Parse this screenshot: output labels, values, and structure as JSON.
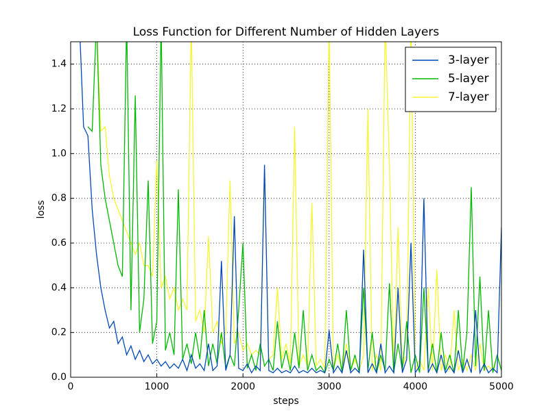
{
  "chart_data": {
    "type": "line",
    "title": "Loss Function for Different Number of Hidden Layers",
    "x_label": "steps",
    "y_label": "loss",
    "x": [
      100,
      150,
      200,
      250,
      300,
      350,
      400,
      450,
      500,
      550,
      600,
      650,
      700,
      750,
      800,
      850,
      900,
      950,
      1000,
      1050,
      1100,
      1150,
      1200,
      1250,
      1300,
      1350,
      1400,
      1450,
      1500,
      1550,
      1600,
      1650,
      1700,
      1750,
      1800,
      1850,
      1900,
      1950,
      2000,
      2050,
      2100,
      2150,
      2200,
      2250,
      2300,
      2350,
      2400,
      2450,
      2500,
      2550,
      2600,
      2650,
      2700,
      2750,
      2800,
      2850,
      2900,
      2950,
      3000,
      3050,
      3100,
      3150,
      3200,
      3250,
      3300,
      3350,
      3400,
      3450,
      3500,
      3550,
      3600,
      3650,
      3700,
      3750,
      3800,
      3850,
      3900,
      3950,
      4000,
      4050,
      4100,
      4150,
      4200,
      4250,
      4300,
      4350,
      4400,
      4450,
      4500,
      4550,
      4600,
      4650,
      4700,
      4750,
      4800,
      4850,
      4900,
      4950,
      5000
    ],
    "series": [
      {
        "name": "3-layer",
        "color": "#0047b8",
        "values": [
          1.6,
          1.12,
          1.08,
          0.75,
          0.55,
          0.4,
          0.3,
          0.22,
          0.25,
          0.15,
          0.18,
          0.1,
          0.14,
          0.08,
          0.12,
          0.07,
          0.1,
          0.06,
          0.08,
          0.05,
          0.07,
          0.04,
          0.06,
          0.04,
          0.08,
          0.03,
          0.1,
          0.04,
          0.06,
          0.03,
          0.15,
          0.03,
          0.05,
          0.52,
          0.03,
          0.1,
          0.72,
          0.04,
          0.03,
          0.06,
          0.02,
          0.05,
          0.03,
          0.95,
          0.03,
          0.02,
          0.04,
          0.02,
          0.03,
          0.02,
          0.05,
          0.02,
          0.03,
          0.02,
          0.04,
          0.02,
          0.03,
          0.02,
          0.21,
          0.02,
          0.05,
          0.02,
          0.12,
          0.02,
          0.04,
          0.02,
          0.57,
          0.02,
          0.06,
          0.02,
          0.15,
          0.02,
          0.05,
          0.02,
          0.4,
          0.02,
          0.08,
          0.6,
          0.02,
          0.05,
          0.8,
          0.02,
          0.06,
          0.02,
          0.1,
          0.02,
          0.05,
          0.02,
          0.12,
          0.02,
          0.08,
          0.02,
          0.3,
          0.02,
          0.06,
          0.02,
          0.04,
          0.02,
          0.67
        ]
      },
      {
        "name": "5-layer",
        "color": "#00b800",
        "values": [
          null,
          null,
          1.12,
          1.1,
          1.6,
          0.95,
          0.8,
          0.7,
          0.6,
          0.5,
          0.45,
          1.6,
          0.3,
          1.26,
          0.2,
          0.35,
          0.88,
          0.15,
          0.25,
          1.6,
          0.12,
          0.2,
          0.1,
          0.84,
          0.08,
          0.15,
          0.06,
          0.2,
          0.08,
          0.3,
          0.05,
          0.15,
          0.06,
          0.2,
          0.04,
          0.1,
          0.05,
          0.3,
          0.6,
          0.04,
          0.1,
          0.03,
          0.15,
          0.05,
          0.08,
          0.03,
          0.25,
          0.04,
          0.12,
          0.03,
          0.2,
          0.04,
          0.3,
          0.03,
          0.1,
          0.03,
          0.05,
          0.02,
          0.08,
          0.03,
          0.15,
          0.02,
          0.3,
          0.03,
          0.1,
          0.02,
          0.4,
          0.03,
          0.2,
          0.02,
          0.1,
          0.03,
          0.42,
          0.02,
          0.15,
          0.03,
          0.25,
          0.02,
          0.1,
          0.02,
          0.4,
          0.03,
          0.15,
          0.02,
          0.2,
          0.03,
          0.1,
          0.02,
          0.3,
          0.03,
          0.2,
          0.85,
          0.05,
          0.45,
          0.03,
          0.3,
          0.02,
          0.1,
          0.03
        ]
      },
      {
        "name": "7-layer",
        "color": "#f5f532",
        "values": [
          null,
          null,
          null,
          null,
          1.6,
          1.1,
          1.12,
          0.9,
          0.8,
          0.75,
          0.7,
          0.65,
          0.6,
          0.55,
          0.6,
          0.5,
          0.5,
          0.45,
          0.97,
          0.4,
          0.45,
          0.35,
          0.4,
          0.3,
          0.35,
          0.3,
          1.6,
          0.25,
          0.3,
          0.2,
          0.63,
          0.2,
          0.25,
          0.15,
          0.2,
          0.88,
          0.15,
          0.2,
          0.12,
          0.15,
          0.1,
          0.12,
          0.1,
          0.9,
          0.08,
          0.1,
          0.4,
          0.08,
          0.15,
          0.06,
          1.12,
          0.05,
          0.1,
          0.05,
          0.78,
          0.05,
          0.08,
          0.04,
          1.6,
          0.04,
          0.1,
          0.03,
          0.15,
          0.03,
          0.08,
          0.03,
          0.1,
          1.2,
          0.03,
          0.1,
          0.03,
          1.6,
          0.95,
          0.03,
          0.67,
          0.05,
          0.1,
          1.6,
          0.03,
          0.08,
          0.03,
          0.4,
          0.03,
          0.48,
          0.03,
          0.1,
          0.03,
          0.3,
          0.03,
          0.08,
          0.03,
          0.1,
          0.03,
          0.15,
          0.03,
          0.05,
          0.03,
          0.1,
          0.03
        ]
      }
    ],
    "xlim": [
      0,
      5000
    ],
    "xticks": [
      0,
      1000,
      2000,
      3000,
      4000,
      5000
    ],
    "ylim": [
      0,
      1.5
    ],
    "yticks": [
      {
        "value": 0,
        "label": "0.0"
      },
      0.2,
      0.4,
      0.6,
      0.8,
      {
        "value": 1,
        "label": "1.0"
      },
      1.2,
      1.4
    ],
    "grid": true,
    "legend": "upper right"
  }
}
